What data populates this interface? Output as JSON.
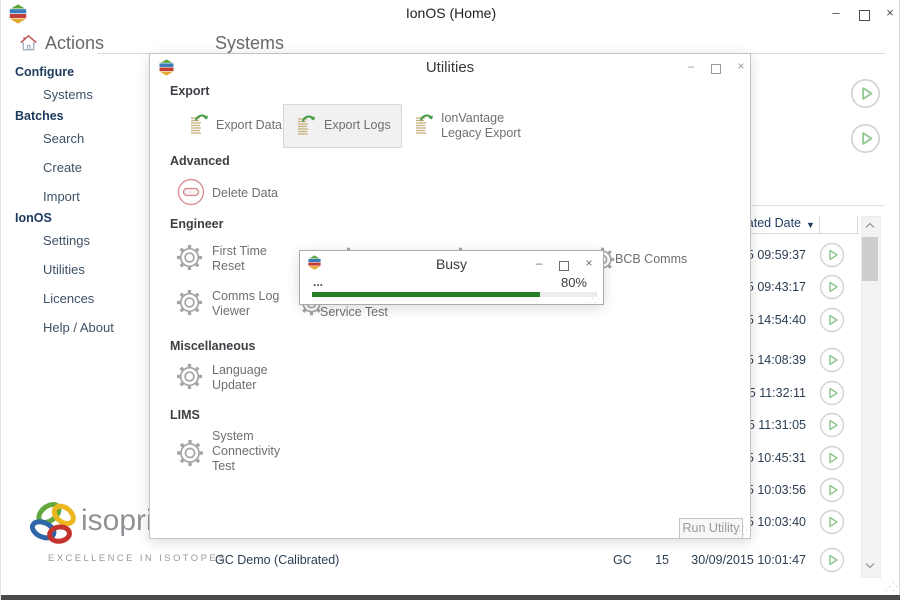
{
  "window": {
    "title": "IonOS (Home)",
    "icons": {
      "minimize": "–",
      "close": "×"
    }
  },
  "actions_panel": {
    "heading": "Actions"
  },
  "content": {
    "heading": "Systems"
  },
  "nav": {
    "sections": [
      {
        "label": "Configure",
        "items": [
          "Systems"
        ]
      },
      {
        "label": "Batches",
        "items": [
          "Search",
          "Create",
          "Import"
        ]
      },
      {
        "label": "IonOS",
        "items": [
          "Settings",
          "Utilities",
          "Licences",
          "Help / About"
        ]
      }
    ]
  },
  "branding": {
    "name": "isoprime",
    "tagline": "EXCELLENCE IN ISOTOPES"
  },
  "table": {
    "created_date_header": "Created Date",
    "sort_icon": "▼",
    "rows": [
      {
        "created_date": "15 09:59:37"
      },
      {
        "created_date": "15 09:43:17"
      },
      {
        "created_date": "15 14:54:40"
      },
      {
        "created_date": "15 14:08:39"
      },
      {
        "created_date": "15 11:32:11"
      },
      {
        "created_date": "15 11:31:05"
      },
      {
        "created_date": "15 10:45:31"
      },
      {
        "created_date": "15 10:03:56"
      },
      {
        "created_date": "15 10:03:40"
      },
      {
        "name": "GC Demo (Calibrated)",
        "system_type": "GC",
        "number": "15",
        "created_date": "30/09/2015 10:01:47"
      }
    ]
  },
  "utilities_dialog": {
    "title": "Utilities",
    "sections": {
      "export": "Export",
      "advanced": "Advanced",
      "engineer": "Engineer",
      "miscellaneous": "Miscellaneous",
      "lims": "LIMS"
    },
    "items": {
      "export_data": "Export Data",
      "export_logs": "Export Logs",
      "ionvantage_line1": "IonVantage",
      "ionvantage_line2": "Legacy Export",
      "delete_data": "Delete Data",
      "first_time_reset_line1": "First Time",
      "first_time_reset_line2": "Reset",
      "comms_log_viewer_line1": "Comms Log",
      "comms_log_viewer_line2": "Viewer",
      "bcb_comms": "BCB Comms",
      "service_test": "Service Test",
      "language_updater_line1": "Language",
      "language_updater_line2": "Updater",
      "system_connectivity_line1": "System",
      "system_connectivity_line2": "Connectivity",
      "system_connectivity_line3": "Test"
    },
    "run_button": "Run Utility"
  },
  "busy_dialog": {
    "title": "Busy",
    "status_dots": "...",
    "progress_label": "80%",
    "progress_percent": 80
  },
  "colors": {
    "progress_green": "#277f27",
    "play_green": "#90c890",
    "navy": "#1d3a5f"
  }
}
